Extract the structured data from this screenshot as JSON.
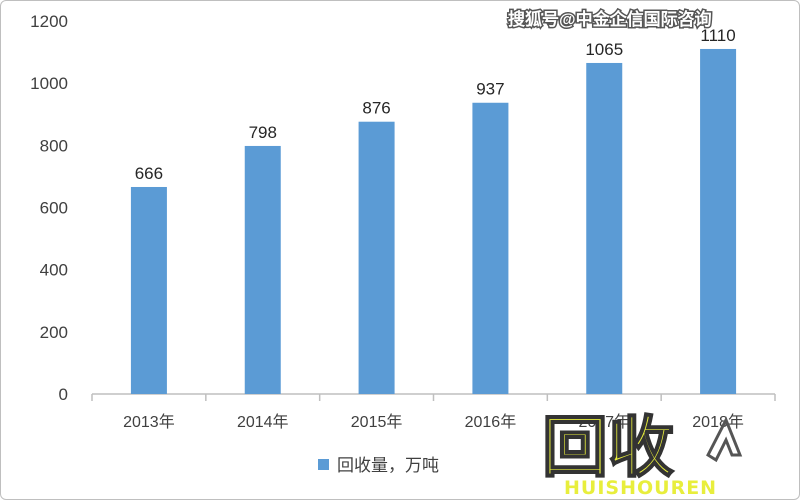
{
  "chart_data": {
    "type": "bar",
    "categories": [
      "2013年",
      "2014年",
      "2015年",
      "2016年",
      "2017年",
      "2018年"
    ],
    "values": [
      666,
      798,
      876,
      937,
      1065,
      1110
    ],
    "title": "",
    "xlabel": "",
    "ylabel": "",
    "ylim": [
      0,
      1200
    ],
    "yticks": [
      0,
      200,
      400,
      600,
      800,
      1000,
      1200
    ],
    "grid": false,
    "legend": {
      "placement": "bottom",
      "entries": [
        "回收量，万吨"
      ]
    },
    "series": [
      {
        "name": "回收量，万吨",
        "values": [
          666,
          798,
          876,
          937,
          1065,
          1110
        ]
      }
    ],
    "bar_color": "#5b9bd5",
    "axis_color": "#bfbfbf"
  },
  "watermark": {
    "top_text": "搜狐号@中金企信国际咨询",
    "logo_text": "回收",
    "logo_sub": "HUISHOUREN",
    "logo_color": "#e8ee3c"
  }
}
